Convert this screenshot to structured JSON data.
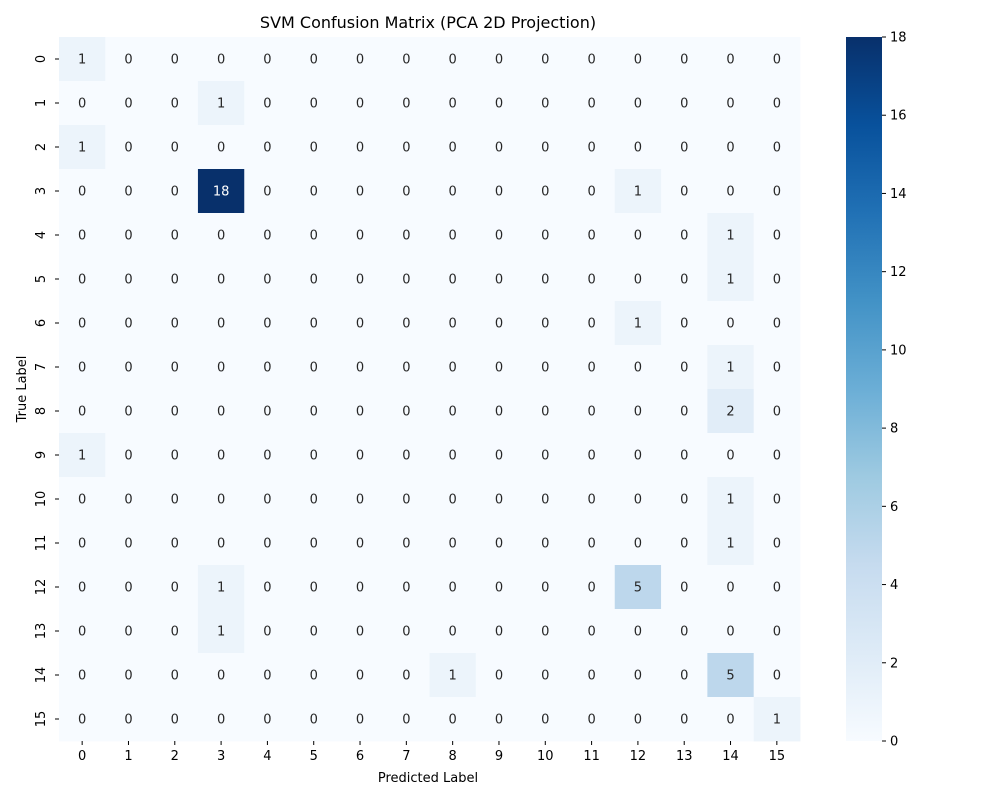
{
  "chart_data": {
    "type": "heatmap",
    "title": "SVM Confusion Matrix (PCA 2D Projection)",
    "xlabel": "Predicted Label",
    "ylabel": "True Label",
    "x_categories": [
      "0",
      "1",
      "2",
      "3",
      "4",
      "5",
      "6",
      "7",
      "8",
      "9",
      "10",
      "11",
      "12",
      "13",
      "14",
      "15"
    ],
    "y_categories": [
      "0",
      "1",
      "2",
      "3",
      "4",
      "5",
      "6",
      "7",
      "8",
      "9",
      "10",
      "11",
      "12",
      "13",
      "14",
      "15"
    ],
    "values": [
      [
        1,
        0,
        0,
        0,
        0,
        0,
        0,
        0,
        0,
        0,
        0,
        0,
        0,
        0,
        0,
        0
      ],
      [
        0,
        0,
        0,
        1,
        0,
        0,
        0,
        0,
        0,
        0,
        0,
        0,
        0,
        0,
        0,
        0
      ],
      [
        1,
        0,
        0,
        0,
        0,
        0,
        0,
        0,
        0,
        0,
        0,
        0,
        0,
        0,
        0,
        0
      ],
      [
        0,
        0,
        0,
        18,
        0,
        0,
        0,
        0,
        0,
        0,
        0,
        0,
        1,
        0,
        0,
        0
      ],
      [
        0,
        0,
        0,
        0,
        0,
        0,
        0,
        0,
        0,
        0,
        0,
        0,
        0,
        0,
        1,
        0
      ],
      [
        0,
        0,
        0,
        0,
        0,
        0,
        0,
        0,
        0,
        0,
        0,
        0,
        0,
        0,
        1,
        0
      ],
      [
        0,
        0,
        0,
        0,
        0,
        0,
        0,
        0,
        0,
        0,
        0,
        0,
        1,
        0,
        0,
        0
      ],
      [
        0,
        0,
        0,
        0,
        0,
        0,
        0,
        0,
        0,
        0,
        0,
        0,
        0,
        0,
        1,
        0
      ],
      [
        0,
        0,
        0,
        0,
        0,
        0,
        0,
        0,
        0,
        0,
        0,
        0,
        0,
        0,
        2,
        0
      ],
      [
        1,
        0,
        0,
        0,
        0,
        0,
        0,
        0,
        0,
        0,
        0,
        0,
        0,
        0,
        0,
        0
      ],
      [
        0,
        0,
        0,
        0,
        0,
        0,
        0,
        0,
        0,
        0,
        0,
        0,
        0,
        0,
        1,
        0
      ],
      [
        0,
        0,
        0,
        0,
        0,
        0,
        0,
        0,
        0,
        0,
        0,
        0,
        0,
        0,
        1,
        0
      ],
      [
        0,
        0,
        0,
        1,
        0,
        0,
        0,
        0,
        0,
        0,
        0,
        0,
        5,
        0,
        0,
        0
      ],
      [
        0,
        0,
        0,
        1,
        0,
        0,
        0,
        0,
        0,
        0,
        0,
        0,
        0,
        0,
        0,
        0
      ],
      [
        0,
        0,
        0,
        0,
        0,
        0,
        0,
        0,
        1,
        0,
        0,
        0,
        0,
        0,
        5,
        0
      ],
      [
        0,
        0,
        0,
        0,
        0,
        0,
        0,
        0,
        0,
        0,
        0,
        0,
        0,
        0,
        0,
        1
      ]
    ],
    "colormap": "Blues",
    "colormap_stops": [
      "#f7fbff",
      "#deebf7",
      "#c6dbef",
      "#9ecae1",
      "#6baed6",
      "#4292c6",
      "#2171b5",
      "#08519c",
      "#08306b"
    ],
    "vmin": 0,
    "vmax": 18,
    "colorbar_ticks": [
      0,
      2,
      4,
      6,
      8,
      10,
      12,
      14,
      16,
      18
    ],
    "colorbar_position": "right",
    "annotation_dark_color": "#262626",
    "annotation_light_color": "#ffffff"
  }
}
